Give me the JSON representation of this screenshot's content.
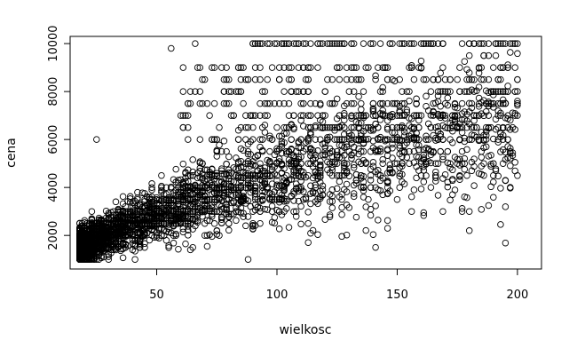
{
  "chart_data": {
    "type": "scatter",
    "title": "",
    "xlabel": "wielkosc",
    "ylabel": "cena",
    "xlim": [
      14,
      210
    ],
    "ylim": [
      600,
      10300
    ],
    "xticks": [
      50,
      100,
      150,
      200
    ],
    "xtick_labels": [
      "50",
      "100",
      "150",
      "200"
    ],
    "yticks": [
      2000,
      4000,
      6000,
      8000,
      10000
    ],
    "ytick_labels": [
      "2000",
      "4000",
      "6000",
      "8000",
      "10000"
    ],
    "grid": false,
    "legend": "none",
    "marker": "open-circle",
    "color": "#000000",
    "x_range": [
      18,
      200
    ],
    "y_range": [
      1000,
      10000
    ],
    "notable_points": [
      {
        "x": 25,
        "y": 6000
      },
      {
        "x": 56,
        "y": 9800
      },
      {
        "x": 66,
        "y": 10000
      },
      {
        "x": 146,
        "y": 2300
      },
      {
        "x": 180,
        "y": 2200
      },
      {
        "x": 200,
        "y": 10000
      },
      {
        "x": 195,
        "y": 4300
      }
    ]
  }
}
